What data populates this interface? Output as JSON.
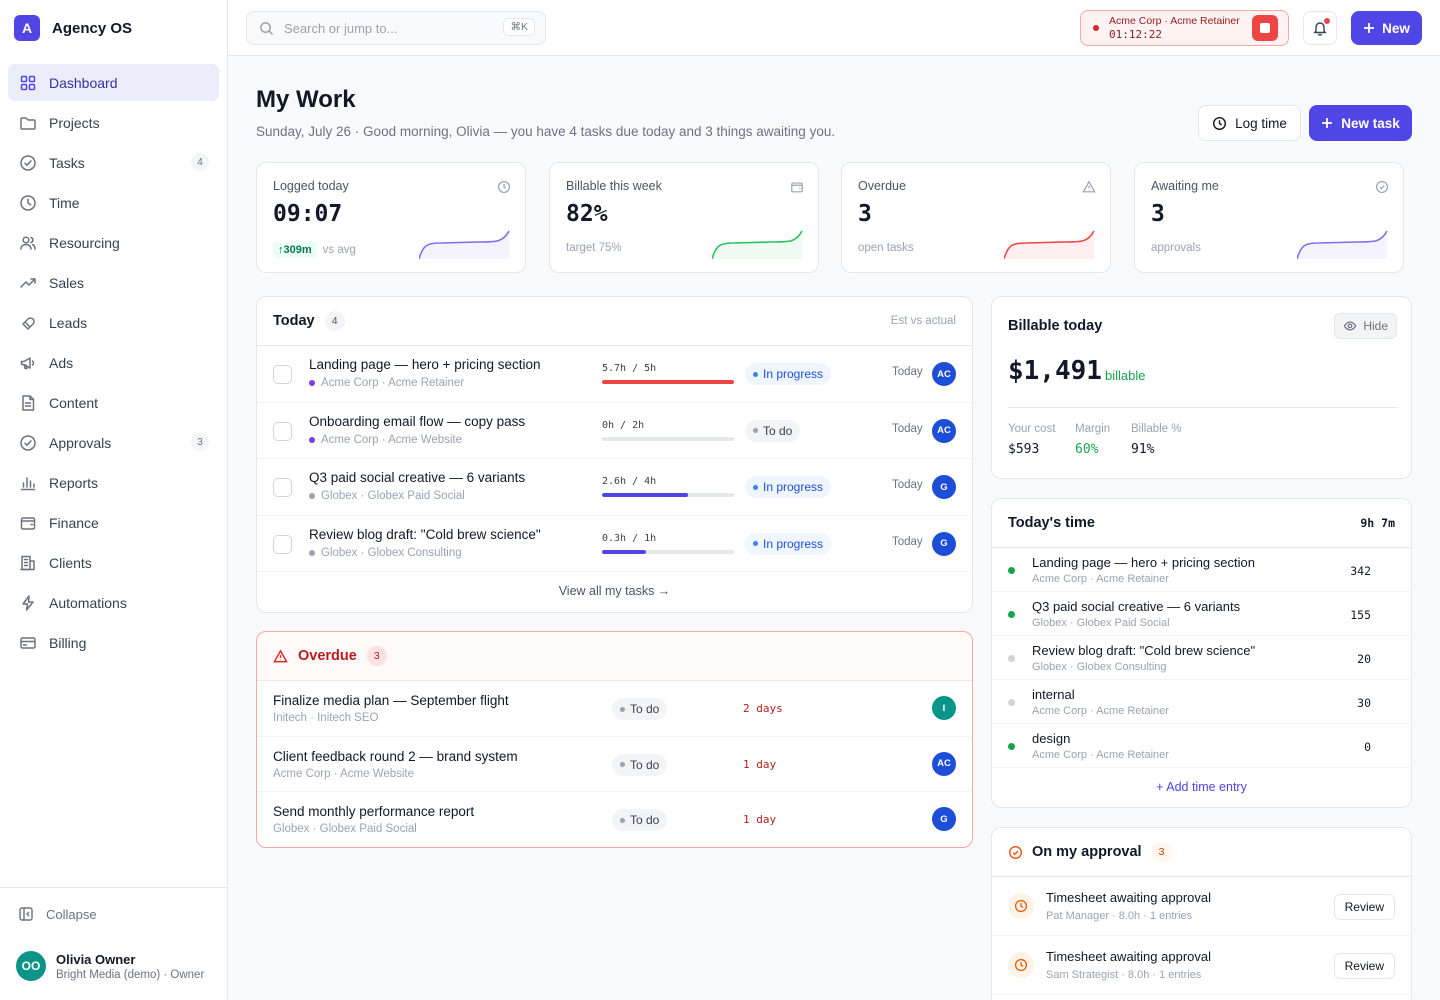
{
  "app": {
    "logo_letter": "A",
    "name": "Agency OS"
  },
  "sidebar": {
    "items": [
      {
        "label": "Dashboard",
        "icon": "grid-icon"
      },
      {
        "label": "Projects",
        "icon": "folder-icon"
      },
      {
        "label": "Tasks",
        "icon": "check-circle-icon",
        "badge": "4"
      },
      {
        "label": "Time",
        "icon": "clock-icon"
      },
      {
        "label": "Resourcing",
        "icon": "users-icon"
      },
      {
        "label": "Sales",
        "icon": "trending-up-icon"
      },
      {
        "label": "Leads",
        "icon": "magnet-icon"
      },
      {
        "label": "Ads",
        "icon": "megaphone-icon"
      },
      {
        "label": "Content",
        "icon": "document-icon"
      },
      {
        "label": "Approvals",
        "icon": "check-badge-icon",
        "badge": "3"
      },
      {
        "label": "Reports",
        "icon": "bar-chart-icon"
      },
      {
        "label": "Finance",
        "icon": "wallet-icon"
      },
      {
        "label": "Clients",
        "icon": "building-icon"
      },
      {
        "label": "Automations",
        "icon": "bolt-icon"
      },
      {
        "label": "Billing",
        "icon": "credit-card-icon"
      }
    ],
    "collapse_label": "Collapse",
    "user": {
      "initials": "OO",
      "name": "Olivia Owner",
      "org": "Bright Media (demo) · Owner"
    }
  },
  "topbar": {
    "search_placeholder": "Search or jump to...",
    "search_shortcut": "⌘K",
    "timer": {
      "label": "Acme Corp · Acme Retainer",
      "time": "01:12:22"
    },
    "new_label": "New"
  },
  "header": {
    "title": "My Work",
    "subtitle": "Sunday, July 26 · Good morning, Olivia — you have 4 tasks due today and 3 things awaiting you.",
    "log_time_label": "Log time",
    "new_task_label": "New task"
  },
  "stats": [
    {
      "label": "Logged today",
      "value": "09:07",
      "delta": "↑309m",
      "foot": "vs avg",
      "color": "#7c6ff0"
    },
    {
      "label": "Billable this week",
      "value": "82%",
      "foot": "target 75%",
      "color": "#22c55e"
    },
    {
      "label": "Overdue",
      "value": "3",
      "foot": "open tasks",
      "color": "#ef4444"
    },
    {
      "label": "Awaiting me",
      "value": "3",
      "foot": "approvals",
      "color": "#7c6ff0"
    }
  ],
  "today": {
    "title": "Today",
    "count": "4",
    "right_label": "Est vs actual",
    "tasks": [
      {
        "name": "Landing page — hero + pricing section",
        "meta": "Acme Corp · Acme Retainer",
        "meta_color": "#7c3aed",
        "progress": "5.7h / 5h",
        "fill": 1.0,
        "bar_color": "#ef4444",
        "status": "In progress",
        "status_kind": "ip",
        "due": "Today",
        "assignee": "AC"
      },
      {
        "name": "Onboarding email flow — copy pass",
        "meta": "Acme Corp · Acme Website",
        "meta_color": "#7c3aed",
        "progress": "0h / 2h",
        "fill": 0.0,
        "bar_color": "#5046e5",
        "status": "To do",
        "status_kind": "td",
        "due": "Today",
        "assignee": "AC"
      },
      {
        "name": "Q3 paid social creative — 6 variants",
        "meta": "Globex · Globex Paid Social",
        "meta_color": "#9ca3af",
        "progress": "2.6h / 4h",
        "fill": 0.65,
        "bar_color": "#5046e5",
        "status": "In progress",
        "status_kind": "ip",
        "due": "Today",
        "assignee": "G"
      },
      {
        "name": "Review blog draft: \"Cold brew science\"",
        "meta": "Globex · Globex Consulting",
        "meta_color": "#9ca3af",
        "progress": "0.3h / 1h",
        "fill": 0.33,
        "bar_color": "#5046e5",
        "status": "In progress",
        "status_kind": "ip",
        "due": "Today",
        "assignee": "G"
      }
    ],
    "view_all": "View all my tasks →"
  },
  "overdue": {
    "title": "Overdue",
    "count": "3",
    "tasks": [
      {
        "name": "Finalize media plan — September flight",
        "meta": "Initech · Initech SEO",
        "status": "To do",
        "days": "2 days",
        "assignee": "I",
        "av_color": "#0d9488"
      },
      {
        "name": "Client feedback round 2 — brand system",
        "meta": "Acme Corp · Acme Website",
        "status": "To do",
        "days": "1 day",
        "assignee": "AC",
        "av_color": "#1d4ed8"
      },
      {
        "name": "Send monthly performance report",
        "meta": "Globex · Globex Paid Social",
        "status": "To do",
        "days": "1 day",
        "assignee": "G",
        "av_color": "#1d4ed8"
      }
    ]
  },
  "billable": {
    "title": "Billable today",
    "hide_label": "Hide",
    "amount": "$1,491",
    "tag": "billable",
    "cols": [
      {
        "label": "Your cost",
        "value": "$593"
      },
      {
        "label": "Margin",
        "value": "60%"
      },
      {
        "label": "Billable %",
        "value": "91%"
      }
    ]
  },
  "todays_time": {
    "title": "Today's time",
    "total": "9h 7m",
    "entries": [
      {
        "name": "Landing page — hero + pricing section",
        "meta": "Acme Corp · Acme Retainer",
        "value": "342",
        "dot": "#16a34a"
      },
      {
        "name": "Q3 paid social creative — 6 variants",
        "meta": "Globex · Globex Paid Social",
        "value": "155",
        "dot": "#16a34a"
      },
      {
        "name": "Review blog draft: \"Cold brew science\"",
        "meta": "Globex · Globex Consulting",
        "value": "20",
        "dot": "#d1d5db"
      },
      {
        "name": "internal",
        "meta": "Acme Corp · Acme Retainer",
        "value": "30",
        "dot": "#d1d5db"
      },
      {
        "name": "design",
        "meta": "Acme Corp · Acme Retainer",
        "value": "0",
        "dot": "#16a34a"
      }
    ],
    "add_label": "+ Add time entry"
  },
  "approvals": {
    "title": "On my approval",
    "count": "3",
    "items": [
      {
        "name": "Timesheet awaiting approval",
        "meta": "Pat Manager · 8.0h · 1 entries",
        "button": "Review"
      },
      {
        "name": "Timesheet awaiting approval",
        "meta": "Sam Strategist · 8.0h · 1 entries",
        "button": "Review"
      }
    ]
  }
}
